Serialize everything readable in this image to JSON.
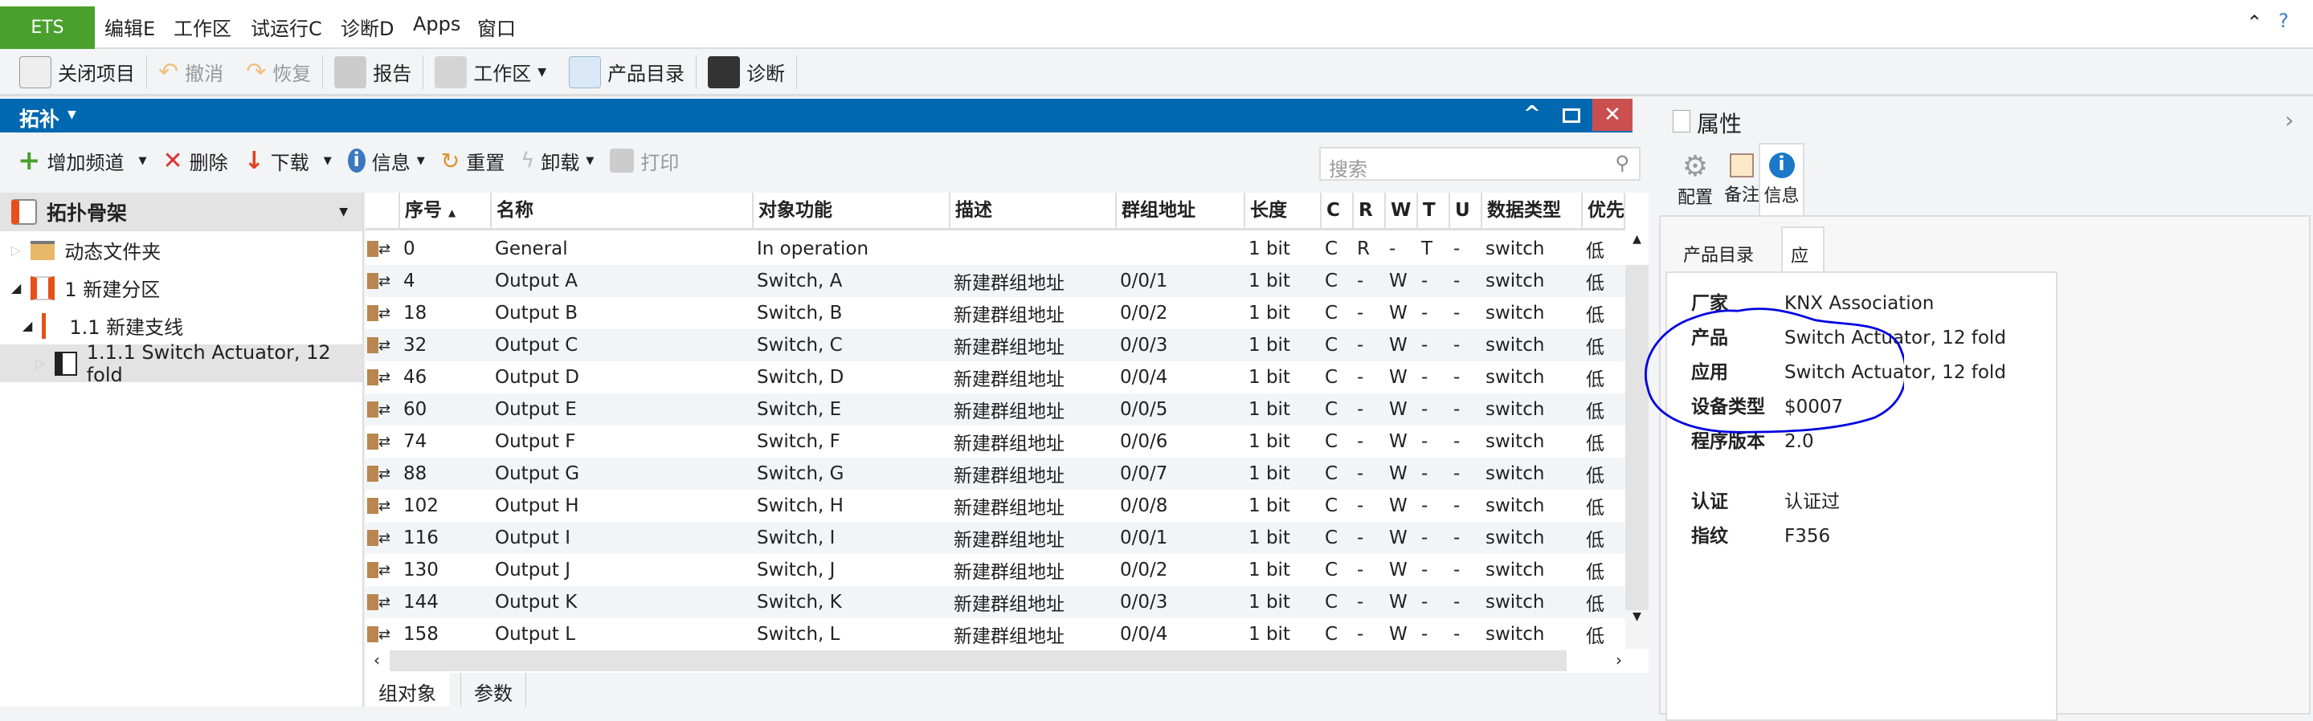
{
  "menubar": {
    "logo": "ETS",
    "items": [
      "编辑E",
      "工作区",
      "试运行C",
      "诊断D",
      "Apps",
      "窗口"
    ]
  },
  "toolbar": {
    "close_project": "关闭项目",
    "undo": "撤消",
    "redo": "恢复",
    "report": "报告",
    "workspace": "工作区",
    "catalog": "产品目录",
    "diagnostics": "诊断"
  },
  "panel": {
    "title": "拓补",
    "toolbar": {
      "add_channel": "增加频道",
      "delete": "删除",
      "download": "下载",
      "info": "信息",
      "reset": "重置",
      "unload": "卸载",
      "print": "打印"
    },
    "search_placeholder": "搜索"
  },
  "tree": {
    "header": "拓扑骨架",
    "items": [
      "动态文件夹",
      "1 新建分区",
      "1.1 新建支线",
      "1.1.1 Switch Actuator, 12 fold"
    ]
  },
  "table": {
    "columns": [
      "序号",
      "名称",
      "对象功能",
      "描述",
      "群组地址",
      "长度",
      "C",
      "R",
      "W",
      "T",
      "U",
      "数据类型",
      "优先"
    ],
    "rows": [
      [
        "0",
        "General",
        "In operation",
        "",
        "",
        "1 bit",
        "C",
        "R",
        "-",
        "T",
        "-",
        "switch",
        "低"
      ],
      [
        "4",
        "Output A",
        "Switch, A",
        "新建群组地址",
        "0/0/1",
        "1 bit",
        "C",
        "-",
        "W",
        "-",
        "-",
        "switch",
        "低"
      ],
      [
        "18",
        "Output B",
        "Switch, B",
        "新建群组地址",
        "0/0/2",
        "1 bit",
        "C",
        "-",
        "W",
        "-",
        "-",
        "switch",
        "低"
      ],
      [
        "32",
        "Output C",
        "Switch, C",
        "新建群组地址",
        "0/0/3",
        "1 bit",
        "C",
        "-",
        "W",
        "-",
        "-",
        "switch",
        "低"
      ],
      [
        "46",
        "Output D",
        "Switch, D",
        "新建群组地址",
        "0/0/4",
        "1 bit",
        "C",
        "-",
        "W",
        "-",
        "-",
        "switch",
        "低"
      ],
      [
        "60",
        "Output E",
        "Switch, E",
        "新建群组地址",
        "0/0/5",
        "1 bit",
        "C",
        "-",
        "W",
        "-",
        "-",
        "switch",
        "低"
      ],
      [
        "74",
        "Output F",
        "Switch, F",
        "新建群组地址",
        "0/0/6",
        "1 bit",
        "C",
        "-",
        "W",
        "-",
        "-",
        "switch",
        "低"
      ],
      [
        "88",
        "Output G",
        "Switch, G",
        "新建群组地址",
        "0/0/7",
        "1 bit",
        "C",
        "-",
        "W",
        "-",
        "-",
        "switch",
        "低"
      ],
      [
        "102",
        "Output H",
        "Switch, H",
        "新建群组地址",
        "0/0/8",
        "1 bit",
        "C",
        "-",
        "W",
        "-",
        "-",
        "switch",
        "低"
      ],
      [
        "116",
        "Output I",
        "Switch, I",
        "新建群组地址",
        "0/0/1",
        "1 bit",
        "C",
        "-",
        "W",
        "-",
        "-",
        "switch",
        "低"
      ],
      [
        "130",
        "Output J",
        "Switch, J",
        "新建群组地址",
        "0/0/2",
        "1 bit",
        "C",
        "-",
        "W",
        "-",
        "-",
        "switch",
        "低"
      ],
      [
        "144",
        "Output K",
        "Switch, K",
        "新建群组地址",
        "0/0/3",
        "1 bit",
        "C",
        "-",
        "W",
        "-",
        "-",
        "switch",
        "低"
      ],
      [
        "158",
        "Output L",
        "Switch, L",
        "新建群组地址",
        "0/0/4",
        "1 bit",
        "C",
        "-",
        "W",
        "-",
        "-",
        "switch",
        "低"
      ]
    ]
  },
  "bottom_tabs": [
    "组对象",
    "参数"
  ],
  "properties": {
    "title": "属性",
    "tabs": [
      "配置",
      "备注",
      "信息"
    ],
    "subtabs": [
      "产品目录",
      "应用"
    ],
    "fields": [
      [
        "厂家",
        "KNX Association"
      ],
      [
        "产品",
        "Switch Actuator, 12 fold"
      ],
      [
        "应用",
        "Switch Actuator, 12 fold"
      ],
      [
        "设备类型",
        "$0007"
      ],
      [
        "程序版本",
        "2.0"
      ],
      [
        "认证",
        "认证过"
      ],
      [
        "指纹",
        "F356"
      ]
    ]
  },
  "colors": {
    "brand": "#4aa02c",
    "panel_bar": "#0068b0",
    "close": "#c9504f",
    "annotation": "#0000e0"
  }
}
